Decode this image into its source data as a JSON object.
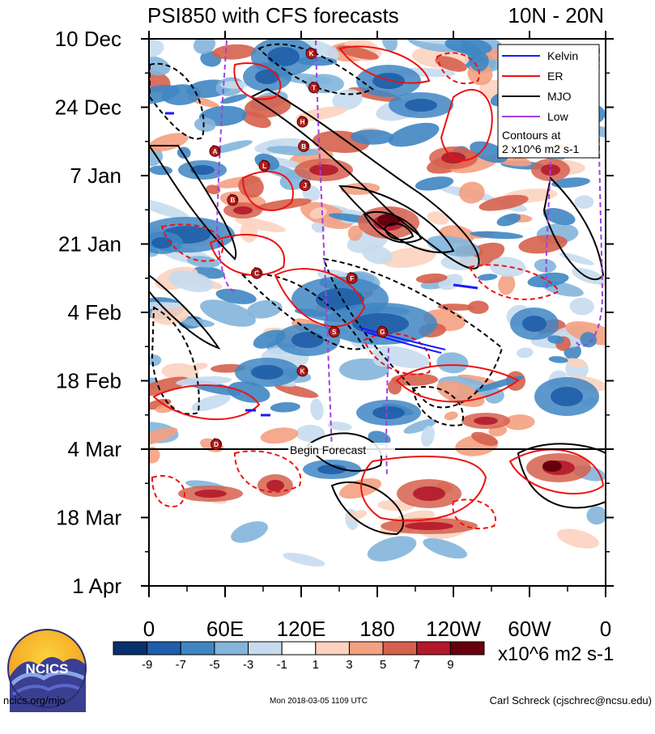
{
  "chart_data": {
    "type": "heatmap",
    "title": "PSI850 with CFS forecasts",
    "region": "10N - 20N",
    "x_ticks": [
      "0",
      "60E",
      "120E",
      "180",
      "120W",
      "60W",
      "0"
    ],
    "x_tick_degrees": [
      0,
      60,
      120,
      180,
      240,
      300,
      360
    ],
    "y_ticks": [
      "10 Dec",
      "24 Dec",
      "7 Jan",
      "21 Jan",
      "4 Feb",
      "18 Feb",
      "4 Mar",
      "18 Mar",
      "1 Apr"
    ],
    "y_tick_days": [
      0,
      14,
      28,
      42,
      56,
      70,
      84,
      98,
      112
    ],
    "forecast_start": {
      "label": "Begin Forecast",
      "day": 84
    },
    "colorbar": {
      "levels": [
        -9,
        -7,
        -5,
        -3,
        -1,
        1,
        3,
        5,
        7,
        9
      ],
      "colors": [
        "#08306b",
        "#1f5ea8",
        "#3f86c3",
        "#83b5da",
        "#c6dcee",
        "#ffffff",
        "#fcd3bf",
        "#f4a081",
        "#d6604d",
        "#b2182b",
        "#67000d"
      ],
      "units": "x10^6 m2 s-1"
    },
    "legend": {
      "placement": "top-right",
      "entries": [
        {
          "name": "Kelvin",
          "color": "#1a1aff"
        },
        {
          "name": "ER",
          "color": "#ee1111"
        },
        {
          "name": "MJO",
          "color": "#000000"
        },
        {
          "name": "Low",
          "color": "#a040e0"
        }
      ],
      "note_line1": "Contours at",
      "note_line2": "2 x10^6 m2 s-1"
    },
    "storm_markers": [
      {
        "id": "K",
        "lon": 128,
        "day": 3
      },
      {
        "id": "T",
        "lon": 130,
        "day": 10
      },
      {
        "id": "H",
        "lon": 121,
        "day": 17
      },
      {
        "id": "B",
        "lon": 122,
        "day": 22
      },
      {
        "id": "A",
        "lon": 52,
        "day": 23
      },
      {
        "id": "L",
        "lon": 91,
        "day": 26
      },
      {
        "id": "J",
        "lon": 123,
        "day": 30
      },
      {
        "id": "B",
        "lon": 66,
        "day": 33
      },
      {
        "id": "C",
        "lon": 85,
        "day": 48
      },
      {
        "id": "F",
        "lon": 160,
        "day": 49
      },
      {
        "id": "S",
        "lon": 146,
        "day": 60
      },
      {
        "id": "G",
        "lon": 184,
        "day": 60
      },
      {
        "id": "K",
        "lon": 121,
        "day": 68
      },
      {
        "id": "D",
        "lon": 53,
        "day": 83
      }
    ]
  },
  "footer": {
    "logo_text": "NCICS",
    "site": "ncics.org/mjo",
    "timestamp": "Mon 2018-03-05 1109 UTC",
    "author": "Carl Schreck (cjschrec@ncsu.edu)"
  },
  "colors": {
    "axis": "#000000",
    "forecast_line": "#000000"
  }
}
